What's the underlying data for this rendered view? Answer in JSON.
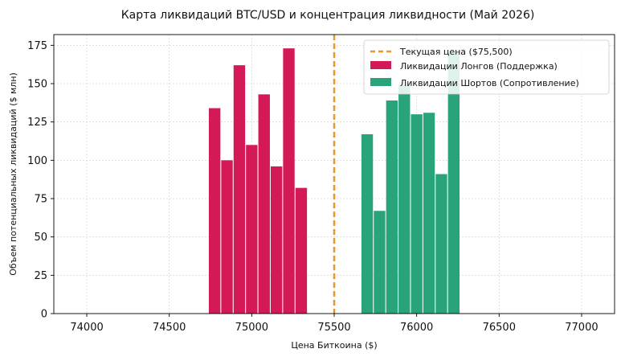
{
  "chart_data": {
    "type": "bar",
    "title": "Карта ликвидаций BTC/USD и концентрация ликвидности (Май 2026)",
    "xlabel": "Цена Биткоина ($)",
    "ylabel": "Объем потенциальных ликвидаций ($ млн)",
    "xlim": [
      73800,
      77200
    ],
    "ylim": [
      0,
      182
    ],
    "xticks": [
      74000,
      74500,
      75000,
      75500,
      76000,
      76500,
      77000
    ],
    "yticks": [
      0,
      25,
      50,
      75,
      100,
      125,
      150,
      175
    ],
    "bar_width": 70,
    "grid": true,
    "legend_position": "top-right",
    "current_price": {
      "label": "Текущая цена ($75,500)",
      "value": 75500,
      "color": "#e8982e"
    },
    "series": [
      {
        "name": "Ликвидации Лонгов (Поддержка)",
        "color": "#d41a56",
        "x": [
          74775,
          74850,
          74925,
          75000,
          75075,
          75150,
          75225,
          75300
        ],
        "values": [
          134,
          100,
          162,
          110,
          143,
          96,
          173,
          82
        ]
      },
      {
        "name": "Ликвидации Шортов (Сопротивление)",
        "color": "#29a37a",
        "x": [
          75700,
          75775,
          75850,
          75925,
          76000,
          76075,
          76150,
          76225
        ],
        "values": [
          117,
          67,
          139,
          149,
          130,
          131,
          91,
          170
        ]
      }
    ]
  }
}
